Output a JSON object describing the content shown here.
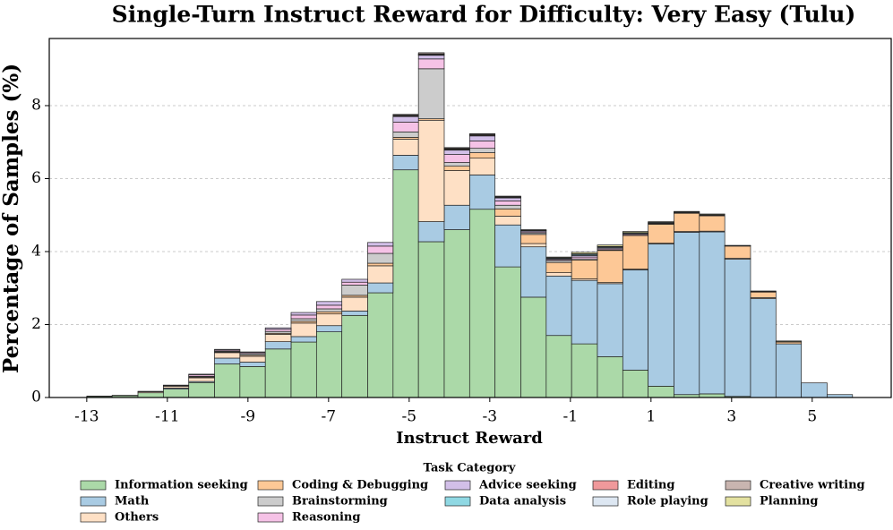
{
  "chart_data": {
    "type": "histogram",
    "title": "Single-Turn Instruct Reward for Difficulty: Very Easy (Tulu)",
    "x_label": "Instruct Reward",
    "y_label": "Percentage of Samples (%)",
    "legend_title": "Task Category",
    "bins": [
      -13,
      -12.37,
      -11.73,
      -11.1,
      -10.47,
      -9.83,
      -9.2,
      -8.57,
      -7.93,
      -7.3,
      -6.67,
      -6.03,
      -5.4,
      -4.77,
      -4.13,
      -3.5,
      -2.87,
      -2.23,
      -1.6,
      -0.97,
      -0.33,
      0.3,
      0.93,
      1.57,
      2.2,
      2.83,
      3.47,
      4.1,
      4.73,
      5.37,
      6.0
    ],
    "xlim": [
      -13.93,
      6.96
    ],
    "ylim": [
      0,
      9.84
    ],
    "xticks": [
      -13,
      -11,
      -9,
      -7,
      -5,
      -3,
      -1,
      1,
      3,
      5
    ],
    "yticks": [
      0,
      2,
      4,
      6,
      8
    ],
    "grid": true,
    "stacked": true,
    "series": [
      {
        "name": "Information seeking",
        "color": "#abd9a8",
        "values": [
          0.03,
          0.05,
          0.13,
          0.23,
          0.41,
          0.92,
          0.85,
          1.33,
          1.52,
          1.8,
          2.25,
          2.87,
          6.24,
          4.27,
          4.6,
          5.16,
          3.58,
          2.75,
          1.7,
          1.47,
          1.12,
          0.75,
          0.31,
          0.08,
          0.1,
          0.03,
          0,
          0,
          0,
          0
        ]
      },
      {
        "name": "Math",
        "color": "#a9cbe3",
        "values": [
          0,
          0,
          0,
          0.03,
          0.03,
          0.16,
          0.12,
          0.2,
          0.15,
          0.17,
          0.12,
          0.27,
          0.4,
          0.55,
          0.67,
          0.94,
          1.15,
          1.38,
          1.63,
          1.74,
          2.0,
          2.75,
          3.9,
          4.45,
          4.44,
          3.76,
          2.71,
          1.47,
          0.4,
          0.08
        ]
      },
      {
        "name": "Others",
        "color": "#fee0c5",
        "values": [
          0.01,
          0.01,
          0.03,
          0.05,
          0.1,
          0.15,
          0.16,
          0.2,
          0.37,
          0.32,
          0.38,
          0.47,
          0.44,
          2.78,
          0.95,
          0.46,
          0.24,
          0.09,
          0.09,
          0.04,
          0.03,
          0.02,
          0.02,
          0.02,
          0.02,
          0.03,
          0.03,
          0,
          0,
          0
        ]
      },
      {
        "name": "Coding & Debugging",
        "color": "#fdc896",
        "values": [
          0,
          0,
          0,
          0,
          0.02,
          0.02,
          0.03,
          0.03,
          0.05,
          0.06,
          0.05,
          0.07,
          0.05,
          0.04,
          0.12,
          0.15,
          0.2,
          0.25,
          0.28,
          0.52,
          0.88,
          0.92,
          0.52,
          0.5,
          0.42,
          0.33,
          0.15,
          0.05,
          0,
          0
        ]
      },
      {
        "name": "Brainstorming",
        "color": "#cccccc",
        "values": [
          0,
          0,
          0,
          0,
          0.02,
          0.02,
          0.04,
          0.05,
          0.07,
          0.08,
          0.28,
          0.27,
          0.15,
          1.37,
          0.1,
          0.12,
          0.1,
          0.04,
          0.05,
          0.03,
          0.02,
          0.01,
          0.01,
          0,
          0,
          0,
          0,
          0,
          0,
          0
        ]
      },
      {
        "name": "Reasoning",
        "color": "#f5c2e6",
        "values": [
          0,
          0,
          0.01,
          0.02,
          0.04,
          0.03,
          0.03,
          0.06,
          0.1,
          0.1,
          0.08,
          0.2,
          0.27,
          0.27,
          0.22,
          0.2,
          0.12,
          0.03,
          0.03,
          0.05,
          0.03,
          0.03,
          0.01,
          0.01,
          0.01,
          0,
          0.01,
          0,
          0,
          0
        ]
      },
      {
        "name": "Advice seeking",
        "color": "#d2bfe8",
        "values": [
          0,
          0,
          0,
          0.01,
          0.02,
          0.02,
          0.02,
          0.04,
          0.07,
          0.1,
          0.08,
          0.1,
          0.15,
          0.1,
          0.12,
          0.14,
          0.08,
          0.03,
          0.02,
          0.04,
          0.03,
          0.02,
          0.01,
          0.01,
          0.01,
          0,
          0,
          0,
          0,
          0
        ]
      },
      {
        "name": "Data analysis",
        "color": "#8fd8e3",
        "values": [
          0,
          0,
          0,
          0,
          0,
          0,
          0,
          0,
          0,
          0,
          0,
          0,
          0.01,
          0.01,
          0.01,
          0.01,
          0.01,
          0.01,
          0.02,
          0.03,
          0.02,
          0.02,
          0.02,
          0.02,
          0.01,
          0.01,
          0.01,
          0.01,
          0,
          0
        ]
      },
      {
        "name": "Editing",
        "color": "#f0999b",
        "values": [
          0,
          0,
          0,
          0,
          0,
          0,
          0,
          0,
          0,
          0,
          0,
          0,
          0.02,
          0.02,
          0.02,
          0.02,
          0.01,
          0,
          0.01,
          0.01,
          0.01,
          0,
          0,
          0,
          0,
          0,
          0,
          0,
          0,
          0
        ]
      },
      {
        "name": "Role playing",
        "color": "#dde7f2",
        "values": [
          0,
          0,
          0,
          0,
          0,
          0,
          0,
          0,
          0,
          0,
          0,
          0,
          0.01,
          0.01,
          0.01,
          0,
          0,
          0,
          0,
          0,
          0,
          0,
          0,
          0,
          0,
          0,
          0,
          0,
          0,
          0
        ]
      },
      {
        "name": "Creative writing",
        "color": "#c9b5b0",
        "values": [
          0,
          0,
          0,
          0,
          0,
          0,
          0,
          0,
          0,
          0,
          0,
          0,
          0.02,
          0.03,
          0.02,
          0.02,
          0.02,
          0.01,
          0,
          0.01,
          0,
          0,
          0,
          0,
          0,
          0,
          0,
          0,
          0,
          0
        ]
      },
      {
        "name": "Planning",
        "color": "#e3e1a0",
        "values": [
          0,
          0,
          0,
          0,
          0,
          0,
          0,
          0,
          0,
          0,
          0,
          0,
          0,
          0,
          0.01,
          0.01,
          0.01,
          0.01,
          0.02,
          0.04,
          0.04,
          0.03,
          0.02,
          0.01,
          0.02,
          0.01,
          0.01,
          0.02,
          0,
          0
        ]
      }
    ]
  }
}
